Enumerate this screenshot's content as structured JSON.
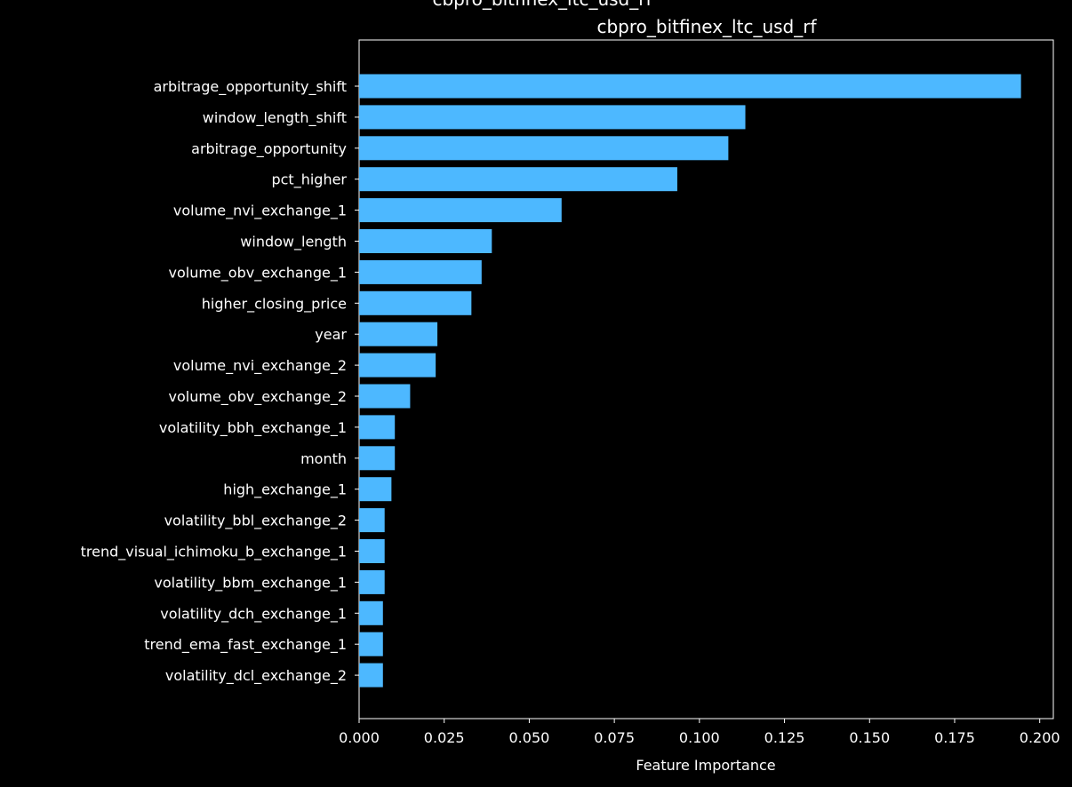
{
  "chart_data": {
    "type": "bar",
    "orientation": "horizontal",
    "title": "cbpro_bitfinex_ltc_usd_rf",
    "top_clipped_text": "cbpro_bitfinex_ltc_usd_rf",
    "xlabel": "Feature Importance",
    "ylabel": "",
    "xlim": [
      0,
      0.204
    ],
    "xticks": [
      "0.000",
      "0.025",
      "0.050",
      "0.075",
      "0.100",
      "0.125",
      "0.150",
      "0.175",
      "0.200"
    ],
    "xtick_values": [
      0,
      0.025,
      0.05,
      0.075,
      0.1,
      0.125,
      0.15,
      0.175,
      0.2
    ],
    "categories": [
      "arbitrage_opportunity_shift",
      "window_length_shift",
      "arbitrage_opportunity",
      "pct_higher",
      "volume_nvi_exchange_1",
      "window_length",
      "volume_obv_exchange_1",
      "higher_closing_price",
      "year",
      "volume_nvi_exchange_2",
      "volume_obv_exchange_2",
      "volatility_bbh_exchange_1",
      "month",
      "high_exchange_1",
      "volatility_bbl_exchange_2",
      "trend_visual_ichimoku_b_exchange_1",
      "volatility_bbm_exchange_1",
      "volatility_dch_exchange_1",
      "trend_ema_fast_exchange_1",
      "volatility_dcl_exchange_2"
    ],
    "values": [
      0.1945,
      0.1135,
      0.1085,
      0.0935,
      0.0595,
      0.039,
      0.036,
      0.033,
      0.023,
      0.0225,
      0.015,
      0.0105,
      0.0105,
      0.0095,
      0.0075,
      0.0075,
      0.0075,
      0.007,
      0.007,
      0.007
    ],
    "grid": false,
    "colors": {
      "bar": "#4db8ff",
      "background": "#000000",
      "axes": "#ffffff",
      "text": "#ffffff"
    }
  }
}
